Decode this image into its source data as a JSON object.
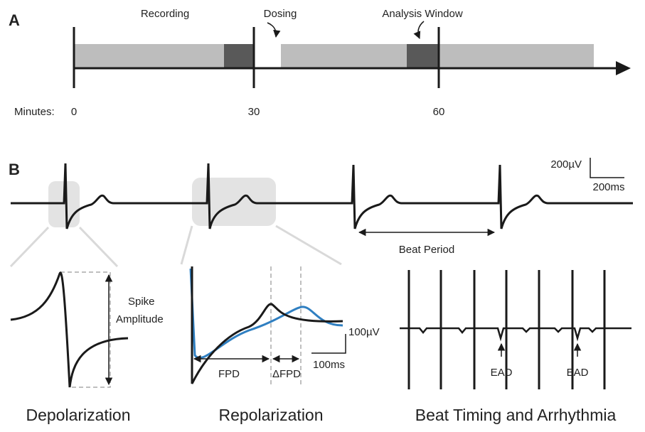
{
  "panel_a": {
    "label": "A",
    "recording": "Recording",
    "dosing": "Dosing",
    "analysis_window": "Analysis Window",
    "axis_caption": "Minutes:",
    "ticks": [
      0,
      30,
      60
    ]
  },
  "panel_b": {
    "label": "B",
    "scale_voltage": "200µV",
    "scale_time": "200ms",
    "beat_period": "Beat Period",
    "depolarization": {
      "spike_label": [
        "Spike",
        "Amplitude"
      ],
      "title": "Depolarization"
    },
    "repolarization": {
      "scale_voltage": "100µV",
      "scale_time": "100ms",
      "fpd": "FPD",
      "delta_fpd": "ΔFPD",
      "title": "Repolarization"
    },
    "arrhythmia": {
      "ead_labels": [
        "EAD",
        "EAD"
      ],
      "title": "Beat Timing and Arrhythmia"
    }
  }
}
